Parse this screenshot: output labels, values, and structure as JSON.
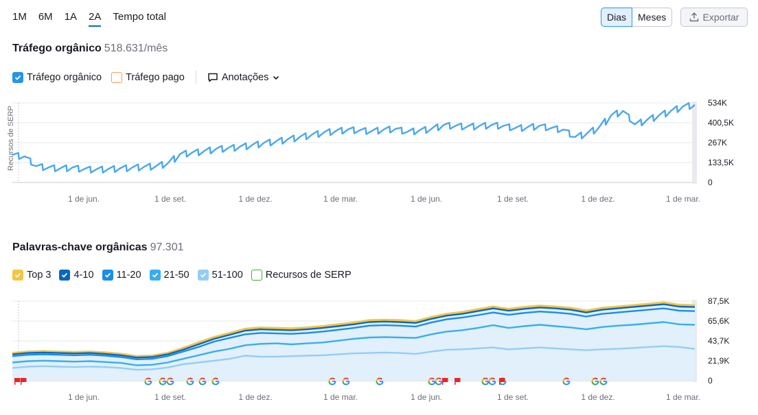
{
  "range_tabs": [
    {
      "label": "1M",
      "active": false
    },
    {
      "label": "6M",
      "active": false
    },
    {
      "label": "1A",
      "active": false
    },
    {
      "label": "2A",
      "active": true
    },
    {
      "label": "Tempo total",
      "active": false
    }
  ],
  "granularity": {
    "days_label": "Dias",
    "months_label": "Meses",
    "selected": "Dias"
  },
  "export_label": "Exportar",
  "traffic": {
    "title": "Tráfego orgânico",
    "value": "518.631/mês",
    "legend": {
      "organic_label": "Tráfego orgânico",
      "organic_checked": true,
      "paid_label": "Tráfego pago",
      "paid_checked": false,
      "annotations_label": "Anotações"
    },
    "side_label": "Recursos de SERP"
  },
  "keywords": {
    "title": "Palavras-chave orgânicas",
    "value": "97.301",
    "legend": [
      {
        "label": "Top 3",
        "checked": true,
        "color": "#f4c545"
      },
      {
        "label": "4-10",
        "checked": true,
        "color": "#0a66c2"
      },
      {
        "label": "11-20",
        "checked": true,
        "color": "#1b8ce8"
      },
      {
        "label": "21-50",
        "checked": true,
        "color": "#38aef0"
      },
      {
        "label": "51-100",
        "checked": true,
        "color": "#93cdf6"
      },
      {
        "label": "Recursos de SERP",
        "checked": false,
        "color": "#3eaa3a"
      }
    ]
  },
  "colors": {
    "accent": "#006dca",
    "traffic_line": "#4aa8ec",
    "paid_box": "#ff9a57",
    "flag": "#e8262b",
    "google_blue": "#4285f4",
    "google_red": "#ea4335",
    "google_yellow": "#fbbc05",
    "google_green": "#34a853"
  },
  "chart_data": [
    {
      "type": "line",
      "name": "Tráfego orgânico",
      "x_tick_labels": [
        "1 de jun.",
        "1 de set.",
        "1 de dez.",
        "1 de mar.",
        "1 de jun.",
        "1 de set.",
        "1 de dez.",
        "1 de mar."
      ],
      "y_tick_labels": [
        "534K",
        "400,5K",
        "267K",
        "133,5K",
        "0"
      ],
      "ylim": [
        0,
        534000
      ],
      "series": [
        {
          "name": "Tráfego orgânico",
          "values": [
            185000,
            175000,
            110000,
            100000,
            95000,
            100000,
            90000,
            88000,
            90000,
            95000,
            100000,
            105000,
            110000,
            130000,
            190000,
            200000,
            210000,
            225000,
            230000,
            240000,
            250000,
            265000,
            275000,
            290000,
            305000,
            320000,
            335000,
            345000,
            355000,
            350000,
            345000,
            355000,
            360000,
            340000,
            350000,
            360000,
            385000,
            380000,
            375000,
            380000,
            385000,
            380000,
            365000,
            370000,
            380000,
            365000,
            355000,
            305000,
            330000,
            370000,
            450000,
            480000,
            390000,
            420000,
            450000,
            480000,
            510000,
            520000
          ]
        }
      ]
    },
    {
      "type": "area",
      "name": "Palavras-chave orgânicas",
      "x_tick_labels": [
        "1 de jun.",
        "1 de set.",
        "1 de dez.",
        "1 de mar.",
        "1 de jun.",
        "1 de set.",
        "1 de dez.",
        "1 de mar."
      ],
      "y_tick_labels": [
        "87,5K",
        "65,6K",
        "43,7K",
        "21,9K",
        "0"
      ],
      "ylim": [
        0,
        87500
      ],
      "series": [
        {
          "name": "51-100",
          "values": [
            14000,
            15500,
            16000,
            15500,
            15000,
            15500,
            15000,
            14000,
            12000,
            12500,
            14500,
            18000,
            20000,
            22000,
            24000,
            27500,
            26500,
            26500,
            27000,
            27500,
            28000,
            29000,
            30000,
            30500,
            31000,
            30500,
            29500,
            32000,
            34000,
            34500,
            35500,
            36500,
            34500,
            35500,
            36500,
            35500,
            34500,
            33500,
            34500,
            35000,
            36000,
            37000,
            38000,
            37000,
            35000
          ]
        },
        {
          "name": "21-50",
          "values": [
            20000,
            21500,
            22000,
            21500,
            21000,
            21500,
            20500,
            19500,
            17000,
            17500,
            20000,
            24000,
            28000,
            32000,
            35000,
            39000,
            40500,
            41000,
            40000,
            41000,
            42000,
            44000,
            46000,
            47500,
            48000,
            47500,
            47000,
            51000,
            54000,
            55500,
            58000,
            61000,
            58000,
            60000,
            61500,
            60000,
            58500,
            56500,
            59000,
            60500,
            61500,
            63000,
            64500,
            62000,
            61500
          ]
        },
        {
          "name": "11-20",
          "values": [
            27000,
            28500,
            29000,
            28500,
            28000,
            28500,
            27500,
            26000,
            23500,
            24000,
            27000,
            32000,
            37000,
            43000,
            47000,
            51000,
            52500,
            52000,
            51500,
            52500,
            54000,
            56000,
            58000,
            60500,
            61000,
            60500,
            59500,
            64000,
            67500,
            69500,
            72000,
            75000,
            72500,
            74500,
            76000,
            75000,
            73500,
            70500,
            73500,
            75000,
            76500,
            78000,
            79500,
            77000,
            76500
          ]
        },
        {
          "name": "4-10",
          "values": [
            29000,
            30500,
            31000,
            30500,
            30000,
            30500,
            29500,
            28000,
            25500,
            26000,
            29000,
            34000,
            40000,
            46000,
            50500,
            55000,
            56500,
            56000,
            55500,
            56500,
            58000,
            60000,
            62000,
            64500,
            65000,
            64500,
            63500,
            68000,
            71500,
            73500,
            76500,
            79500,
            77000,
            79000,
            80500,
            79500,
            78000,
            75000,
            78000,
            79500,
            81000,
            82500,
            84000,
            81500,
            81000
          ]
        },
        {
          "name": "Top 3",
          "values": [
            30500,
            32000,
            32500,
            32000,
            31500,
            32000,
            31000,
            29500,
            27000,
            27500,
            30500,
            36000,
            42000,
            48000,
            52500,
            57000,
            58500,
            58000,
            57500,
            58500,
            60000,
            62000,
            64000,
            66500,
            67000,
            66500,
            65500,
            70000,
            73500,
            75500,
            78500,
            81500,
            79000,
            81000,
            82500,
            81500,
            80000,
            77000,
            80000,
            81500,
            83000,
            84500,
            86000,
            83500,
            83000
          ]
        }
      ]
    }
  ]
}
